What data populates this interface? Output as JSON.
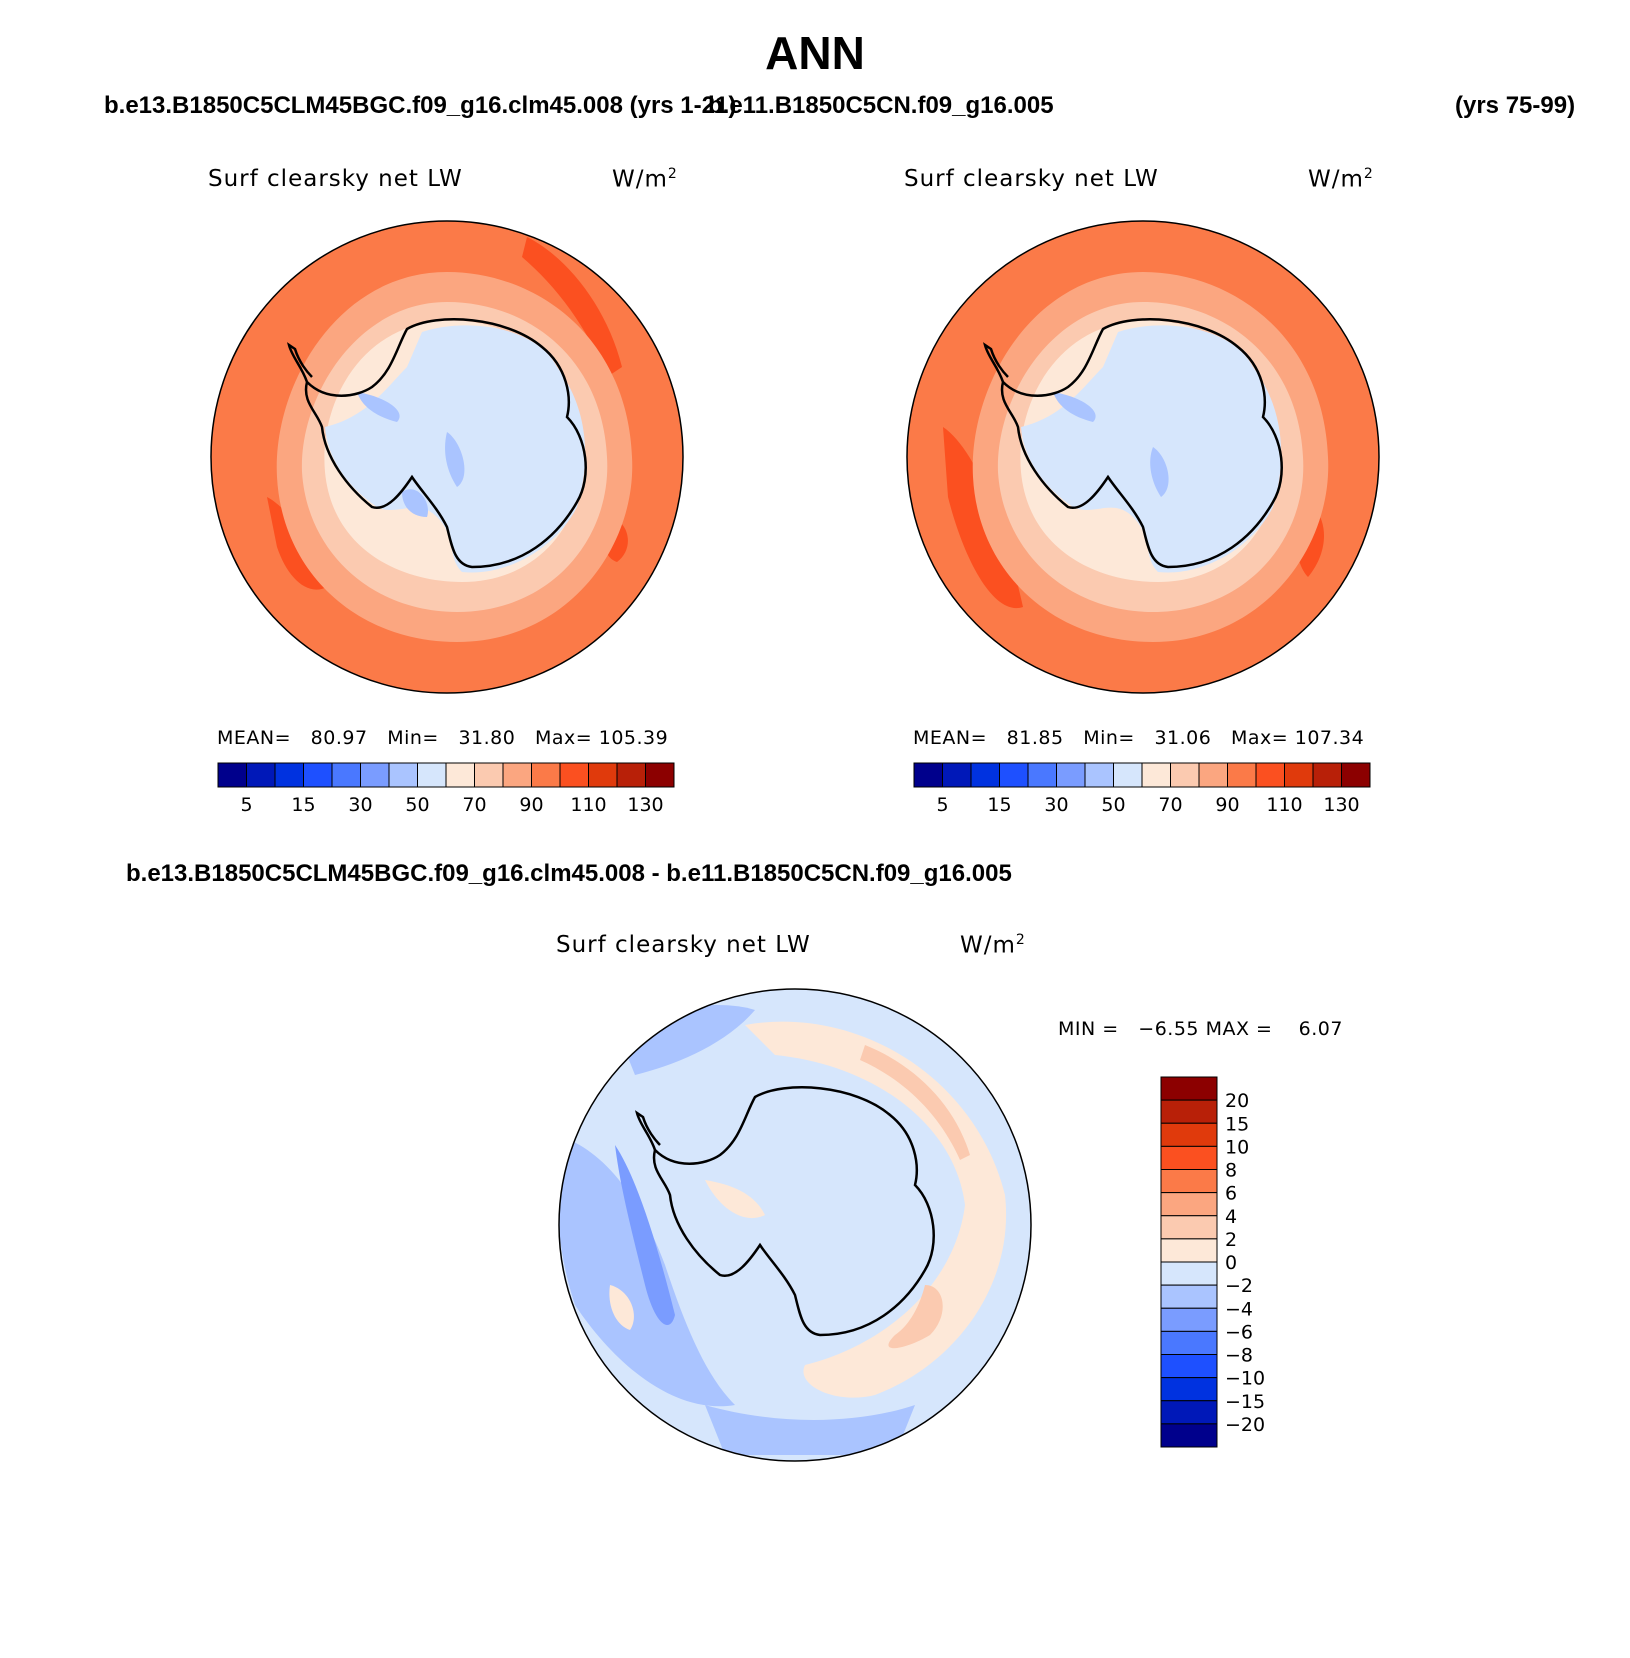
{
  "page": {
    "main_title": "ANN",
    "case_left": "b.e13.B1850C5CLM45BGC.f09_g16.clm45.008 (yrs 1-21)",
    "case_right": "b.e11.B1850C5CN.f09_g16.005",
    "case_right_years": "(yrs 75-99)",
    "diff_title": "b.e13.B1850C5CLM45BGC.f09_g16.clm45.008 - b.e11.B1850C5CN.f09_g16.005"
  },
  "panels": [
    {
      "variable": "Surf clearsky net LW",
      "units": "W/m",
      "units_exponent": "2",
      "stats": {
        "mean_label": "MEAN=",
        "mean": "80.97",
        "min_label": "Min=",
        "min": "31.80",
        "max_label": "Max=",
        "max": "105.39"
      }
    },
    {
      "variable": "Surf clearsky net LW",
      "units": "W/m",
      "units_exponent": "2",
      "stats": {
        "mean_label": "MEAN=",
        "mean": "81.85",
        "min_label": "Min=",
        "min": "31.06",
        "max_label": "Max=",
        "max": "107.34"
      }
    }
  ],
  "diff_panel": {
    "variable": "Surf clearsky net LW",
    "units": "W/m",
    "units_exponent": "2",
    "stats": {
      "min_label": "MIN =",
      "min": "−6.55",
      "max_label": "MAX =",
      "max": "6.07"
    }
  },
  "colorbars": {
    "abs_colors": [
      "#00008c",
      "#0018b8",
      "#0032e0",
      "#1e50ff",
      "#4a78ff",
      "#7a9cff",
      "#aac4ff",
      "#d6e6fc",
      "#fde8d8",
      "#fbcab0",
      "#fba680",
      "#fb7a48",
      "#fb5020",
      "#e03a0c",
      "#b82008",
      "#8c0000"
    ],
    "abs_tick_labels": [
      "5",
      "15",
      "30",
      "50",
      "70",
      "90",
      "110",
      "130"
    ],
    "diff_colors": [
      "#00008c",
      "#0018b8",
      "#0032e0",
      "#1e50ff",
      "#4a78ff",
      "#7a9cff",
      "#aac4ff",
      "#d6e6fc",
      "#fde8d8",
      "#fbcab0",
      "#fba680",
      "#fb7a48",
      "#fb5020",
      "#e03a0c",
      "#b82008",
      "#8c0000"
    ],
    "diff_tick_labels": [
      "20",
      "15",
      "10",
      "8",
      "6",
      "4",
      "2",
      "0",
      "−2",
      "−4",
      "−6",
      "−8",
      "−10",
      "−15",
      "−20"
    ]
  },
  "map_colors": {
    "ocean_outer": "#fb7a48",
    "ring_mid": "#fba680",
    "ring_inner": "#fbcab0",
    "coast_band": "#fde8d8",
    "continent": "#d6e6fc",
    "low_patch": "#aac4ff",
    "hot_patch": "#fb5020",
    "diff_base": "#d6e6fc",
    "diff_neg": "#aac4ff",
    "diff_neg_strong": "#7a9cff",
    "diff_pos": "#fde8d8",
    "diff_pos_strong": "#fbcab0"
  }
}
